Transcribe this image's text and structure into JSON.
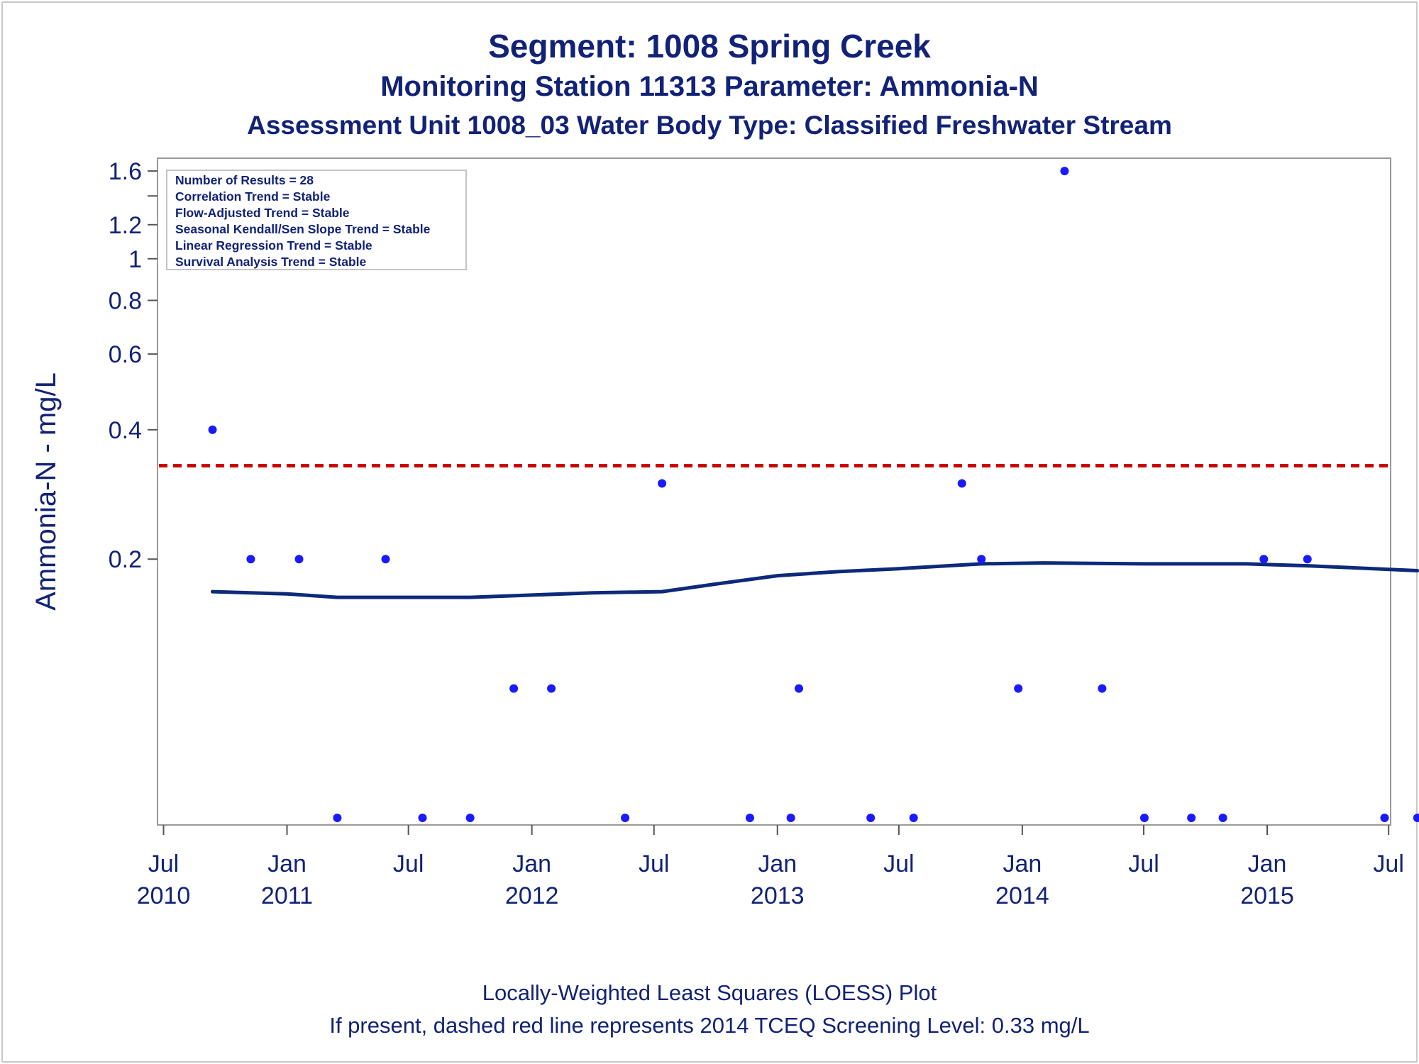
{
  "chart_data": {
    "type": "scatter",
    "title": "Segment: 1008  Spring Creek",
    "subtitle": "Monitoring Station 11313 Parameter: Ammonia-N",
    "subtitle2": "Assessment Unit 1008_03   Water Body Type: Classified Freshwater Stream",
    "ylabel": "Ammonia-N - mg/L",
    "xlabel": "",
    "yscale": "log",
    "ylim": [
      0.05,
      1.65
    ],
    "xlim": [
      "2010-06-22",
      "2015-07-04"
    ],
    "yticks": [
      {
        "value": 1.6,
        "label": "1.6"
      },
      {
        "value": 1.4,
        "label": ""
      },
      {
        "value": 1.2,
        "label": "1.2"
      },
      {
        "value": 1.0,
        "label": "1"
      },
      {
        "value": 0.8,
        "label": "0.8"
      },
      {
        "value": 0.6,
        "label": "0.6"
      },
      {
        "value": 0.4,
        "label": "0.4"
      },
      {
        "value": 0.2,
        "label": "0.2"
      }
    ],
    "xticks": [
      {
        "date": "2010-07-01",
        "label1": "Jul",
        "label2": "2010"
      },
      {
        "date": "2011-01-01",
        "label1": "Jan",
        "label2": "2011"
      },
      {
        "date": "2011-07-01",
        "label1": "Jul",
        "label2": ""
      },
      {
        "date": "2012-01-01",
        "label1": "Jan",
        "label2": "2012"
      },
      {
        "date": "2012-07-01",
        "label1": "Jul",
        "label2": ""
      },
      {
        "date": "2013-01-01",
        "label1": "Jan",
        "label2": "2013"
      },
      {
        "date": "2013-07-01",
        "label1": "Jul",
        "label2": ""
      },
      {
        "date": "2014-01-01",
        "label1": "Jan",
        "label2": "2014"
      },
      {
        "date": "2014-07-01",
        "label1": "Jul",
        "label2": ""
      },
      {
        "date": "2015-01-01",
        "label1": "Jan",
        "label2": "2015"
      },
      {
        "date": "2015-07-01",
        "label1": "Jul",
        "label2": ""
      }
    ],
    "points": [
      {
        "x": "2010-09-12",
        "y": 0.4
      },
      {
        "x": "2010-11-08",
        "y": 0.2
      },
      {
        "x": "2011-01-19",
        "y": 0.2
      },
      {
        "x": "2011-03-17",
        "y": 0.05
      },
      {
        "x": "2011-05-28",
        "y": 0.2
      },
      {
        "x": "2011-07-22",
        "y": 0.05
      },
      {
        "x": "2011-10-01",
        "y": 0.05
      },
      {
        "x": "2011-12-05",
        "y": 0.1
      },
      {
        "x": "2012-01-30",
        "y": 0.1
      },
      {
        "x": "2012-05-19",
        "y": 0.05
      },
      {
        "x": "2012-07-13",
        "y": 0.3
      },
      {
        "x": "2012-11-21",
        "y": 0.05
      },
      {
        "x": "2013-01-21",
        "y": 0.05
      },
      {
        "x": "2013-02-02",
        "y": 0.1
      },
      {
        "x": "2013-05-20",
        "y": 0.05
      },
      {
        "x": "2013-07-23",
        "y": 0.05
      },
      {
        "x": "2013-10-03",
        "y": 0.3
      },
      {
        "x": "2013-11-01",
        "y": 0.2
      },
      {
        "x": "2013-12-26",
        "y": 0.1
      },
      {
        "x": "2014-03-05",
        "y": 1.6
      },
      {
        "x": "2014-04-30",
        "y": 0.1
      },
      {
        "x": "2014-07-02",
        "y": 0.05
      },
      {
        "x": "2014-09-10",
        "y": 0.05
      },
      {
        "x": "2014-10-27",
        "y": 0.05
      },
      {
        "x": "2014-12-27",
        "y": 0.2
      },
      {
        "x": "2015-03-02",
        "y": 0.2
      },
      {
        "x": "2015-06-25",
        "y": 0.05
      },
      {
        "x": "2015-08-13",
        "y": 0.05
      }
    ],
    "loess": [
      {
        "x": "2010-09-12",
        "y": 0.168
      },
      {
        "x": "2011-01-01",
        "y": 0.166
      },
      {
        "x": "2011-03-17",
        "y": 0.163
      },
      {
        "x": "2011-07-01",
        "y": 0.163
      },
      {
        "x": "2011-10-01",
        "y": 0.163
      },
      {
        "x": "2012-01-01",
        "y": 0.165
      },
      {
        "x": "2012-04-01",
        "y": 0.167
      },
      {
        "x": "2012-07-13",
        "y": 0.168
      },
      {
        "x": "2012-10-01",
        "y": 0.175
      },
      {
        "x": "2013-01-01",
        "y": 0.183
      },
      {
        "x": "2013-04-01",
        "y": 0.187
      },
      {
        "x": "2013-07-01",
        "y": 0.19
      },
      {
        "x": "2013-11-01",
        "y": 0.195
      },
      {
        "x": "2014-02-01",
        "y": 0.196
      },
      {
        "x": "2014-07-02",
        "y": 0.195
      },
      {
        "x": "2014-12-01",
        "y": 0.195
      },
      {
        "x": "2015-03-02",
        "y": 0.193
      },
      {
        "x": "2015-08-13",
        "y": 0.188
      }
    ],
    "reference_line": {
      "y": 0.33,
      "color": "#cc0000",
      "style": "dashed"
    },
    "marker_color": "#1a1aff",
    "line_color": "#0d2a7a",
    "stats_box": [
      "Number of Results = 28",
      "Correlation Trend = Stable",
      "Flow-Adjusted Trend = Stable",
      "Seasonal Kendall/Sen Slope Trend = Stable",
      "Linear Regression Trend = Stable",
      "Survival Analysis Trend = Stable"
    ],
    "stats_box_placement": "top-left",
    "grid": false,
    "footer": [
      "Locally-Weighted Least Squares (LOESS) Plot",
      "If present, dashed red line represents 2014 TCEQ Screening Level: 0.33 mg/L"
    ]
  }
}
